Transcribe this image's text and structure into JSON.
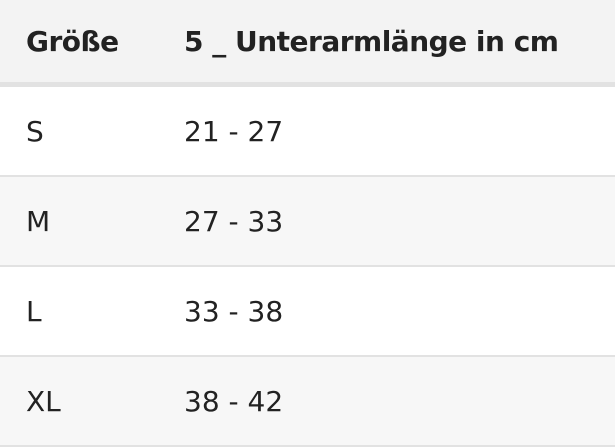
{
  "table": {
    "header": [
      "Größe",
      "5 _ Unterarmlänge in cm"
    ],
    "rows": [
      [
        "S",
        "21 - 27"
      ],
      [
        "M",
        "27 - 33"
      ],
      [
        "L",
        "33 - 38"
      ],
      [
        "XL",
        "38 - 42"
      ]
    ]
  }
}
